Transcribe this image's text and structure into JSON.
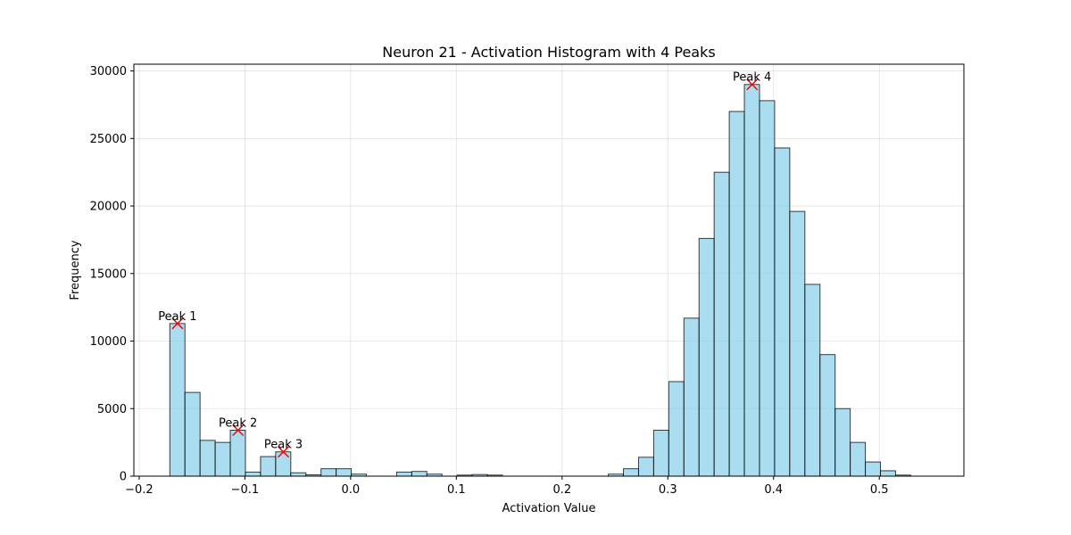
{
  "chart_data": {
    "type": "bar",
    "title": "Neuron 21 - Activation Histogram with 4 Peaks",
    "xlabel": "Activation Value",
    "ylabel": "Frequency",
    "xlim": [
      -0.205,
      0.58
    ],
    "ylim": [
      0,
      30500
    ],
    "grid": true,
    "bar_color": "#87ceeb",
    "peak_marker_color": "#ff0000",
    "x_ticks": [
      -0.2,
      -0.1,
      0.0,
      0.1,
      0.2,
      0.3,
      0.4,
      0.5
    ],
    "x_tick_labels": [
      "−0.2",
      "−0.1",
      "0.0",
      "0.1",
      "0.2",
      "0.3",
      "0.4",
      "0.5"
    ],
    "y_ticks": [
      0,
      5000,
      10000,
      15000,
      20000,
      25000,
      30000
    ],
    "y_tick_labels": [
      "0",
      "5000",
      "10000",
      "15000",
      "20000",
      "25000",
      "30000"
    ],
    "bin_start": -0.171,
    "bin_width": 0.0143,
    "values": [
      11300,
      6200,
      2650,
      2500,
      3400,
      300,
      1450,
      1800,
      250,
      100,
      550,
      550,
      150,
      0,
      0,
      300,
      350,
      150,
      0,
      80,
      120,
      80,
      0,
      0,
      0,
      0,
      0,
      0,
      0,
      150,
      550,
      1400,
      3400,
      7000,
      11700,
      17600,
      22500,
      27000,
      29000,
      27800,
      24300,
      19600,
      14200,
      9000,
      5000,
      2500,
      1050,
      400,
      80,
      0
    ],
    "peaks": [
      {
        "label": "Peak 1",
        "x": -0.1637,
        "y": 11300
      },
      {
        "label": "Peak 2",
        "x": -0.1065,
        "y": 3400
      },
      {
        "label": "Peak 3",
        "x": -0.0636,
        "y": 1800
      },
      {
        "label": "Peak 4",
        "x": 0.3797,
        "y": 29000
      }
    ]
  }
}
